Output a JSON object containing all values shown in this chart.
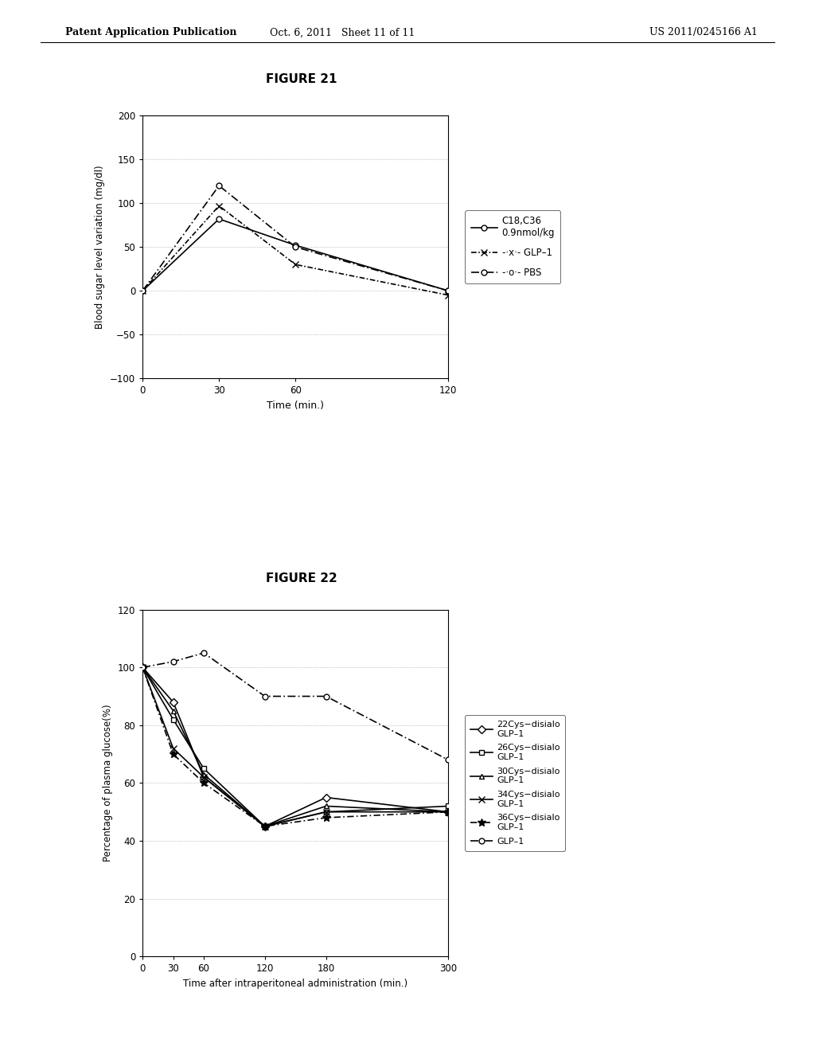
{
  "fig21": {
    "title": "FIGURE 21",
    "xlabel": "Time (min.)",
    "ylabel": "Blood sugar level variation (mg/dl)",
    "xlim": [
      0,
      120
    ],
    "ylim": [
      -100,
      200
    ],
    "yticks": [
      -100,
      -50,
      0,
      50,
      100,
      150,
      200
    ],
    "xticks": [
      0,
      30,
      60,
      120
    ],
    "series": [
      {
        "label": "C18,C36\n0.9nmol/kg",
        "x": [
          0,
          30,
          60,
          120
        ],
        "y": [
          0,
          82,
          52,
          0
        ],
        "linestyle": "-",
        "marker": "o",
        "markersize": 5,
        "color": "#000000",
        "linewidth": 1.2,
        "markerfacecolor": "white"
      },
      {
        "label": "-*- GLP-1",
        "x": [
          0,
          30,
          60,
          120
        ],
        "y": [
          0,
          97,
          30,
          -5
        ],
        "linestyle": "dashdot_x",
        "marker": "x",
        "markersize": 6,
        "color": "#000000",
        "linewidth": 1.2,
        "markerfacecolor": "#000000"
      },
      {
        "label": "-o- PBS",
        "x": [
          0,
          30,
          60,
          120
        ],
        "y": [
          0,
          120,
          50,
          0
        ],
        "linestyle": "dashdot_o",
        "marker": "o",
        "markersize": 5,
        "color": "#000000",
        "linewidth": 1.2,
        "markerfacecolor": "white"
      }
    ]
  },
  "fig22": {
    "title": "FIGURE 22",
    "xlabel": "Time after intraperitoneal administration (min.)",
    "ylabel": "Percentage of plasma glucose(%)",
    "xlim": [
      0,
      300
    ],
    "ylim": [
      0,
      120
    ],
    "yticks": [
      0,
      20,
      40,
      60,
      80,
      100,
      120
    ],
    "xticks": [
      0,
      30,
      60,
      120,
      180,
      300
    ],
    "series": [
      {
        "label": "22Cys-disialo\nGLP-1",
        "x": [
          0,
          30,
          60,
          120,
          180,
          300
        ],
        "y": [
          100,
          88,
          62,
          45,
          55,
          50
        ],
        "linestyle": "-",
        "marker": "D",
        "markersize": 5,
        "color": "#000000",
        "linewidth": 1.2,
        "markerfacecolor": "white"
      },
      {
        "label": "26Cys-disialo\nGLP-1",
        "x": [
          0,
          30,
          60,
          120,
          180,
          300
        ],
        "y": [
          100,
          82,
          65,
          45,
          50,
          52
        ],
        "linestyle": "-",
        "marker": "s",
        "markersize": 5,
        "color": "#000000",
        "linewidth": 1.2,
        "markerfacecolor": "white"
      },
      {
        "label": "30Cys-disialo\nGLP-1",
        "x": [
          0,
          30,
          60,
          120,
          180,
          300
        ],
        "y": [
          100,
          85,
          63,
          45,
          52,
          50
        ],
        "linestyle": "-",
        "marker": "^",
        "markersize": 5,
        "color": "#000000",
        "linewidth": 1.2,
        "markerfacecolor": "white"
      },
      {
        "label": "34Cys-disialo\nGLP-1",
        "x": [
          0,
          30,
          60,
          120,
          180,
          300
        ],
        "y": [
          100,
          72,
          62,
          45,
          50,
          50
        ],
        "linestyle": "-",
        "marker": "x",
        "markersize": 6,
        "color": "#000000",
        "linewidth": 1.2,
        "markerfacecolor": "#000000"
      },
      {
        "label": "36Cys-disialo\nGLP-1",
        "x": [
          0,
          30,
          60,
          120,
          180,
          300
        ],
        "y": [
          100,
          70,
          60,
          45,
          48,
          50
        ],
        "linestyle": "dashdot_star",
        "marker": "*",
        "markersize": 7,
        "color": "#000000",
        "linewidth": 1.2,
        "markerfacecolor": "#000000"
      },
      {
        "label": "GLP-1",
        "x": [
          0,
          30,
          60,
          120,
          180,
          300
        ],
        "y": [
          100,
          102,
          105,
          90,
          90,
          68
        ],
        "linestyle": "dashdot_o",
        "marker": "o",
        "markersize": 5,
        "color": "#000000",
        "linewidth": 1.2,
        "markerfacecolor": "white"
      }
    ]
  },
  "header_left": "Patent Application Publication",
  "header_mid": "Oct. 6, 2011   Sheet 11 of 11",
  "header_right": "US 2011/0245166 A1",
  "background_color": "#ffffff",
  "grid_color": "#999999",
  "grid_linestyle": ":",
  "grid_linewidth": 0.5
}
